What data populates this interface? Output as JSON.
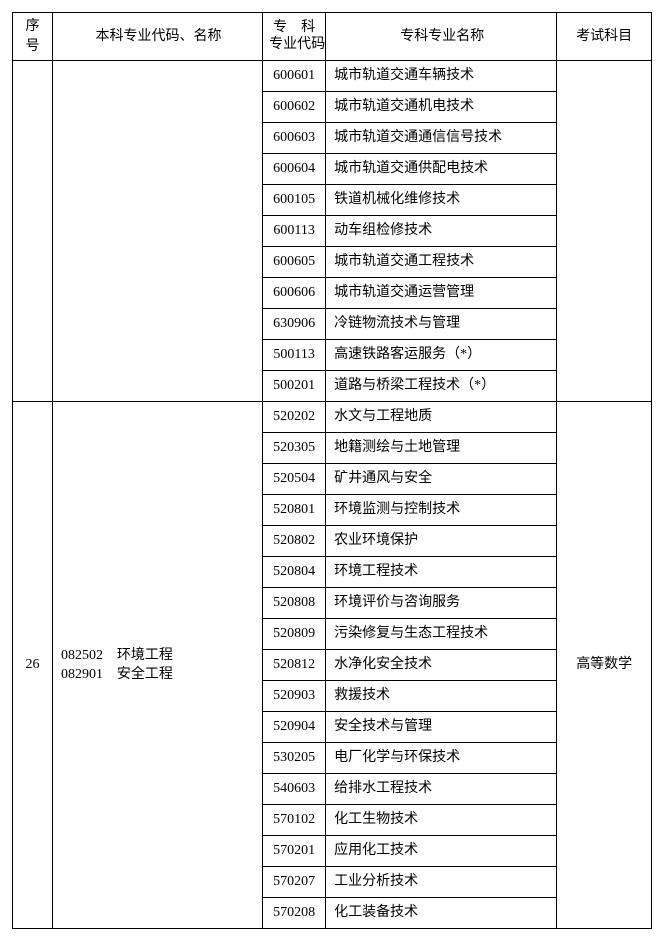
{
  "columns": {
    "seq": "序号",
    "bk": "本科专业代码、名称",
    "zkcode": "专　科\n专业代码",
    "zkname": "专科专业名称",
    "exam": "考试科目"
  },
  "groups": [
    {
      "seq": "",
      "bk_lines": [],
      "exam": "",
      "rows": [
        {
          "code": "600601",
          "name": "城市轨道交通车辆技术"
        },
        {
          "code": "600602",
          "name": "城市轨道交通机电技术"
        },
        {
          "code": "600603",
          "name": "城市轨道交通通信信号技术"
        },
        {
          "code": "600604",
          "name": "城市轨道交通供配电技术"
        },
        {
          "code": "600105",
          "name": "铁道机械化维修技术"
        },
        {
          "code": "600113",
          "name": "动车组检修技术"
        },
        {
          "code": "600605",
          "name": "城市轨道交通工程技术"
        },
        {
          "code": "600606",
          "name": "城市轨道交通运营管理"
        },
        {
          "code": "630906",
          "name": "冷链物流技术与管理"
        },
        {
          "code": "500113",
          "name": "高速铁路客运服务（*）"
        },
        {
          "code": "500201",
          "name": "道路与桥梁工程技术（*）"
        }
      ]
    },
    {
      "seq": "26",
      "bk_lines": [
        "082502　环境工程",
        "082901　安全工程"
      ],
      "exam": "高等数学",
      "rows": [
        {
          "code": "520202",
          "name": "水文与工程地质"
        },
        {
          "code": "520305",
          "name": "地籍测绘与土地管理"
        },
        {
          "code": "520504",
          "name": "矿井通风与安全"
        },
        {
          "code": "520801",
          "name": "环境监测与控制技术"
        },
        {
          "code": "520802",
          "name": "农业环境保护"
        },
        {
          "code": "520804",
          "name": "环境工程技术"
        },
        {
          "code": "520808",
          "name": "环境评价与咨询服务"
        },
        {
          "code": "520809",
          "name": "污染修复与生态工程技术"
        },
        {
          "code": "520812",
          "name": "水净化安全技术"
        },
        {
          "code": "520903",
          "name": "救援技术"
        },
        {
          "code": "520904",
          "name": "安全技术与管理"
        },
        {
          "code": "530205",
          "name": "电厂化学与环保技术"
        },
        {
          "code": "540603",
          "name": "给排水工程技术"
        },
        {
          "code": "570102",
          "name": "化工生物技术"
        },
        {
          "code": "570201",
          "name": "应用化工技术"
        },
        {
          "code": "570207",
          "name": "工业分析技术"
        },
        {
          "code": "570208",
          "name": "化工装备技术"
        }
      ]
    }
  ]
}
